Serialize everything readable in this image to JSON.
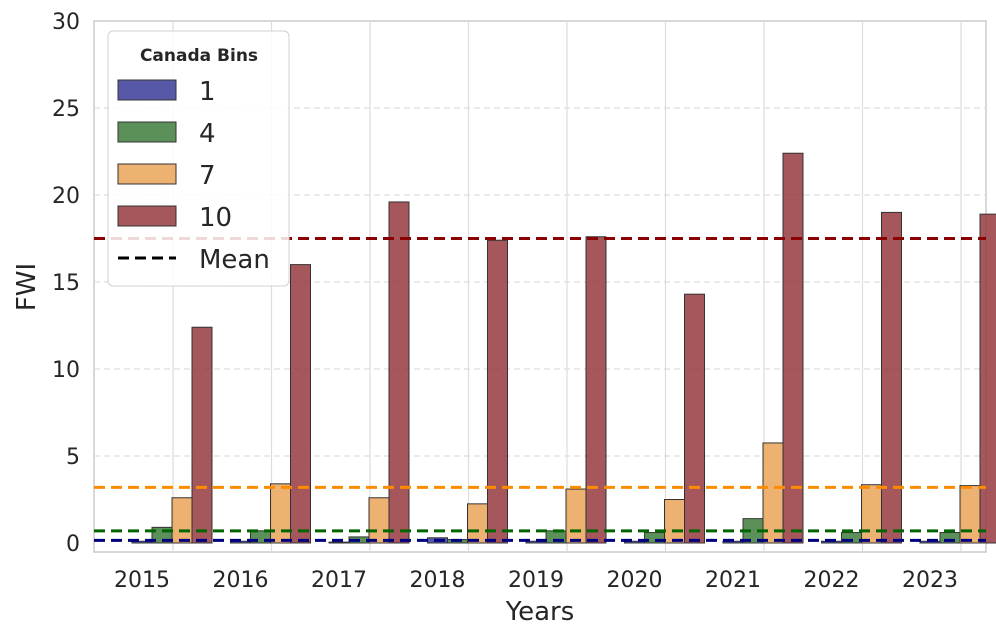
{
  "chart_data": {
    "type": "bar",
    "title": "",
    "xlabel": "Years",
    "ylabel": "FWI",
    "ylim": [
      0,
      30
    ],
    "yticks": [
      "0",
      "5",
      "10",
      "15",
      "20",
      "25",
      "30"
    ],
    "categories": [
      "2015",
      "2016",
      "2017",
      "2018",
      "2019",
      "2020",
      "2021",
      "2022",
      "2023"
    ],
    "legend": {
      "title": "Canada Bins",
      "placement": "top-left",
      "mean_label": "Mean"
    },
    "series": [
      {
        "name": "1",
        "color": "#3b3b9a",
        "values": [
          0.1,
          0.1,
          0.05,
          0.3,
          0.1,
          0.1,
          0.1,
          0.1,
          0.1
        ],
        "mean": 0.15,
        "mean_color": "#00007f"
      },
      {
        "name": "4",
        "color": "#3e7d3c",
        "values": [
          0.9,
          0.7,
          0.35,
          0.2,
          0.7,
          0.6,
          1.4,
          0.6,
          0.6
        ],
        "mean": 0.7,
        "mean_color": "#006400"
      },
      {
        "name": "7",
        "color": "#eaa459",
        "values": [
          2.6,
          3.4,
          2.6,
          2.25,
          3.1,
          2.5,
          5.75,
          3.35,
          3.3
        ],
        "mean": 3.2,
        "mean_color": "#ff8c00"
      },
      {
        "name": "10",
        "color": "#963a3f",
        "values": [
          12.4,
          16.0,
          19.6,
          17.4,
          17.6,
          14.3,
          22.4,
          19.0,
          18.9
        ],
        "mean": 17.5,
        "mean_color": "#8b0000"
      }
    ]
  }
}
